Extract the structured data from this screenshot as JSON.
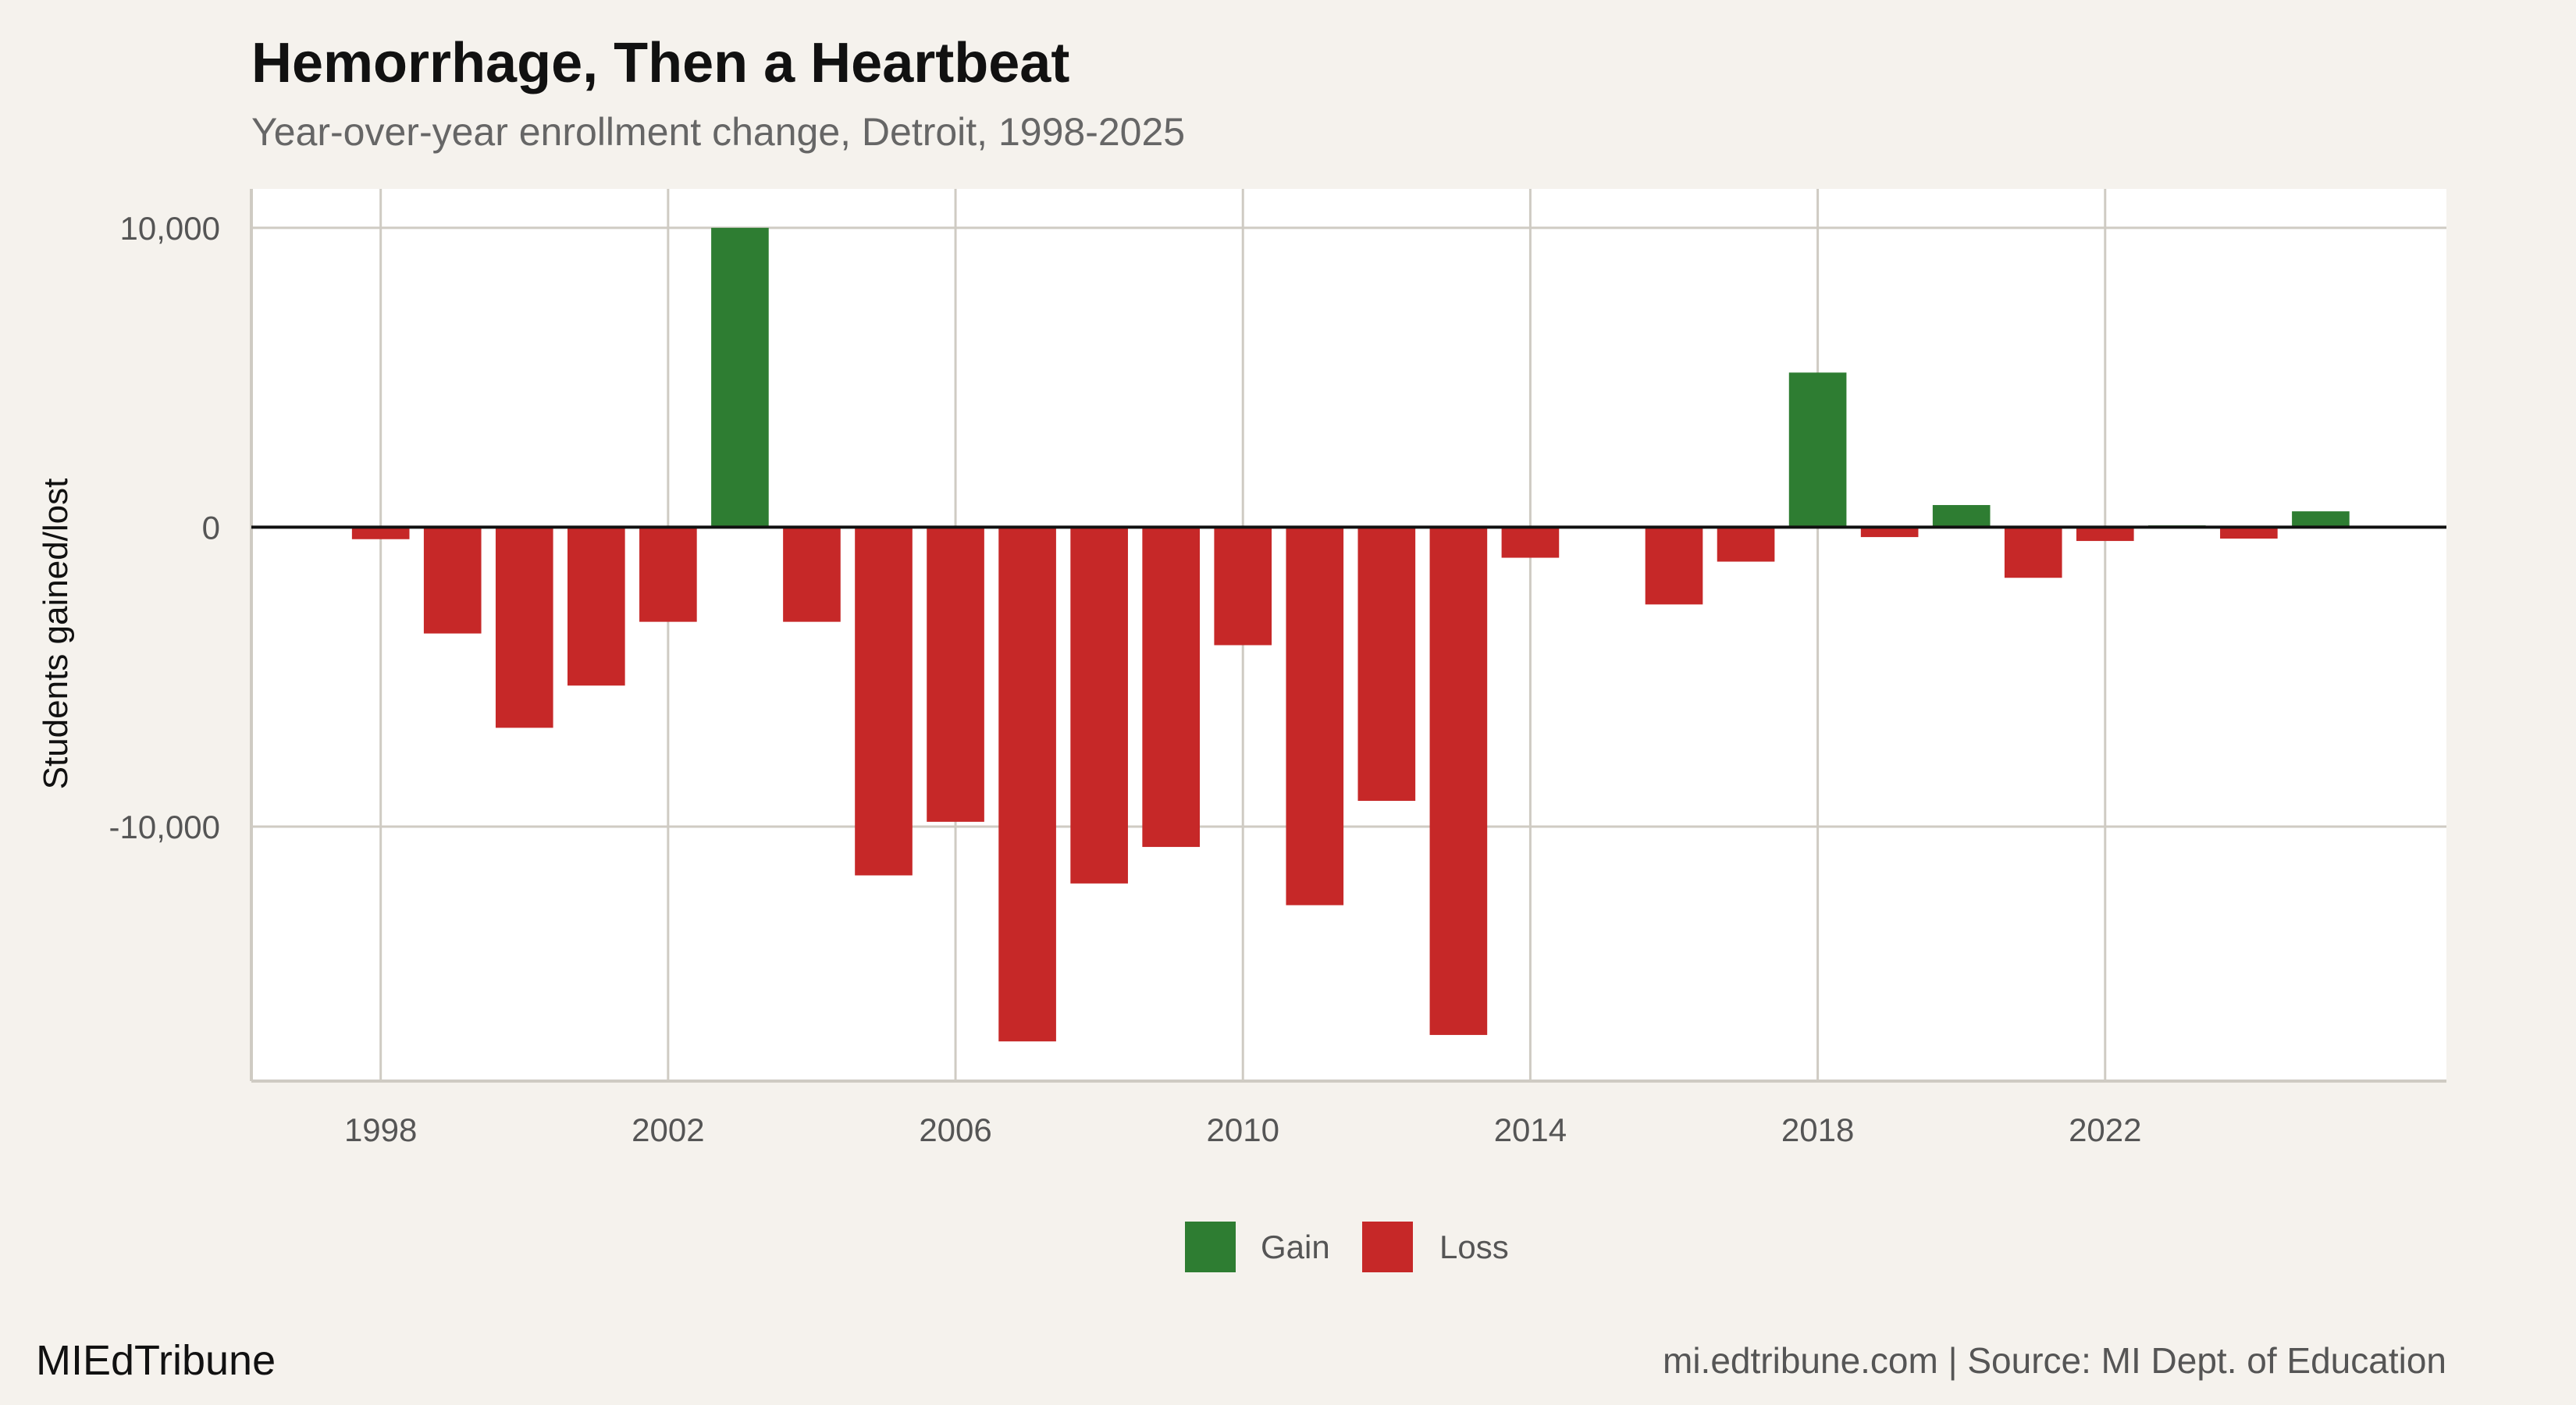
{
  "title": "Hemorrhage, Then a Heartbeat",
  "subtitle": "Year-over-year enrollment change, Detroit, 1998-2025",
  "footer": {
    "brand": "MIEdTribune",
    "source": "mi.edtribune.com | Source: MI Dept. of Education"
  },
  "colors": {
    "gain": "#2e7d32",
    "loss": "#c62828",
    "background": "#f5f2ed",
    "panel": "#ffffff",
    "grid": "#cfcbc3"
  },
  "chart_data": {
    "type": "bar",
    "title": "Hemorrhage, Then a Heartbeat",
    "subtitle": "Year-over-year enrollment change, Detroit, 1998-2025",
    "xlabel": "",
    "ylabel": "Students gained/lost",
    "x": [
      1998,
      1999,
      2000,
      2001,
      2002,
      2003,
      2004,
      2005,
      2006,
      2007,
      2008,
      2009,
      2010,
      2011,
      2012,
      2013,
      2014,
      2016,
      2017,
      2018,
      2019,
      2020,
      2021,
      2022,
      2023,
      2024,
      2025
    ],
    "values": [
      -400,
      -3550,
      -6700,
      -5290,
      -3160,
      10000,
      -3160,
      -11630,
      -9840,
      -17175,
      -11900,
      -10680,
      -3940,
      -12625,
      -9140,
      -16960,
      -1020,
      -2580,
      -1150,
      5165,
      -330,
      740,
      -1690,
      -460,
      60,
      -380,
      530
    ],
    "xlim": [
      1996.2,
      2026.75
    ],
    "ylim": [
      -18500,
      11300
    ],
    "xticks": [
      1998,
      2002,
      2006,
      2010,
      2014,
      2018,
      2022
    ],
    "yticks": [
      10000,
      0,
      -10000
    ],
    "ytick_labels": [
      "10,000",
      "0",
      "-10,000"
    ],
    "grid": true,
    "legend": {
      "placement": "bottom",
      "entries": [
        {
          "label": "Gain",
          "color": "#2e7d32"
        },
        {
          "label": "Loss",
          "color": "#c62828"
        }
      ]
    }
  }
}
